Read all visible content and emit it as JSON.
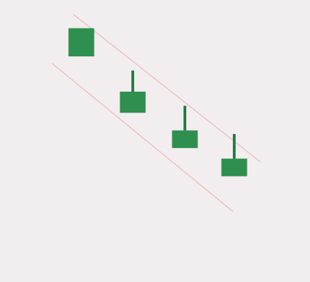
{
  "chart_data": {
    "type": "candlestick",
    "title": "",
    "xlabel": "",
    "ylabel": "",
    "grid": false,
    "legend": "none",
    "candles": [
      {
        "open": 6.4,
        "high": 7.2,
        "low": 6.4,
        "close": 7.2
      },
      {
        "open": 4.8,
        "high": 6.0,
        "low": 4.8,
        "close": 5.4
      },
      {
        "open": 3.8,
        "high": 5.0,
        "low": 3.8,
        "close": 4.3
      },
      {
        "open": 3.0,
        "high": 4.2,
        "low": 3.0,
        "close": 3.5
      }
    ],
    "channel": {
      "upper": [
        7.6,
        3.4
      ],
      "lower": [
        6.2,
        2.0
      ]
    },
    "ylim": [
      0,
      8
    ],
    "colors": {
      "body": "#2f8f4e",
      "wick": "#2a7a45",
      "channel": "#e8c3c3",
      "background": "#f2eef0"
    }
  }
}
